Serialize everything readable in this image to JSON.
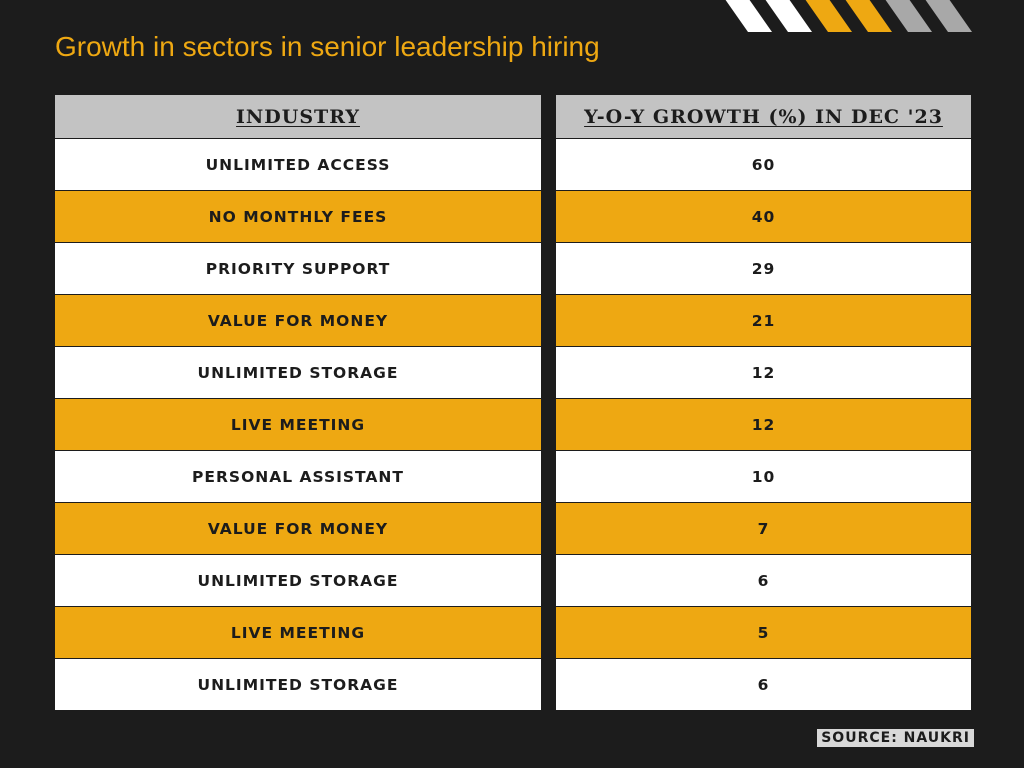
{
  "title": "Growth in sectors in senior leadership hiring",
  "stripes": [
    {
      "color": "#ffffff"
    },
    {
      "color": "#ffffff"
    },
    {
      "color": "#eea812"
    },
    {
      "color": "#eea812"
    },
    {
      "color": "#a8a8a8"
    },
    {
      "color": "#a8a8a8"
    }
  ],
  "colors": {
    "accent": "#eea812",
    "background": "#1c1c1c",
    "header": "#c3c3c3"
  },
  "chart_data": {
    "type": "table",
    "columns": [
      "INDUSTRY",
      "Y-O-Y GROWTH (%) IN DEC '23"
    ],
    "rows": [
      {
        "industry": "UNLIMITED ACCESS",
        "growth": "60"
      },
      {
        "industry": "NO MONTHLY FEES",
        "growth": "40"
      },
      {
        "industry": "PRIORITY SUPPORT",
        "growth": "29"
      },
      {
        "industry": "VALUE FOR MONEY",
        "growth": "21"
      },
      {
        "industry": "UNLIMITED STORAGE",
        "growth": "12"
      },
      {
        "industry": "LIVE MEETING",
        "growth": "12"
      },
      {
        "industry": "PERSONAL ASSISTANT",
        "growth": "10"
      },
      {
        "industry": "VALUE FOR MONEY",
        "growth": "7"
      },
      {
        "industry": "UNLIMITED STORAGE",
        "growth": "6"
      },
      {
        "industry": "LIVE MEETING",
        "growth": "5"
      },
      {
        "industry": "UNLIMITED STORAGE",
        "growth": "6"
      }
    ]
  },
  "source": "SOURCE: NAUKRI"
}
